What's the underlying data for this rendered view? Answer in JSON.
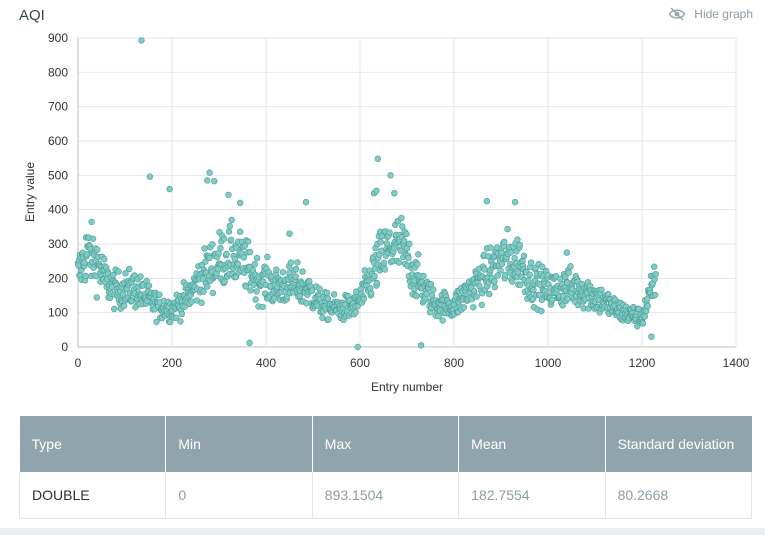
{
  "header": {
    "title": "AQI",
    "hide_graph_label": "Hide graph",
    "hide_graph_icon": "eye-off-icon"
  },
  "chart_data": {
    "type": "scatter",
    "title": "AQI",
    "xlabel": "Entry number",
    "ylabel": "Entry value",
    "xlim": [
      0,
      1400
    ],
    "ylim": [
      0,
      900
    ],
    "xticks": [
      "0",
      "200",
      "400",
      "600",
      "800",
      "1000",
      "1200",
      "1400"
    ],
    "yticks": [
      "0",
      "100",
      "200",
      "300",
      "400",
      "500",
      "600",
      "700",
      "800",
      "900"
    ],
    "grid": true,
    "marker_color": "#80cbc4",
    "marker_edge": "#4c9e9a",
    "n_points": 1230,
    "outliers": [
      {
        "x": 135,
        "y": 893
      },
      {
        "x": 153,
        "y": 496
      },
      {
        "x": 195,
        "y": 460
      },
      {
        "x": 275,
        "y": 485
      },
      {
        "x": 280,
        "y": 508
      },
      {
        "x": 290,
        "y": 483
      },
      {
        "x": 320,
        "y": 443
      },
      {
        "x": 345,
        "y": 420
      },
      {
        "x": 365,
        "y": 12
      },
      {
        "x": 450,
        "y": 330
      },
      {
        "x": 485,
        "y": 422
      },
      {
        "x": 595,
        "y": 0
      },
      {
        "x": 630,
        "y": 448
      },
      {
        "x": 635,
        "y": 455
      },
      {
        "x": 638,
        "y": 548
      },
      {
        "x": 665,
        "y": 500
      },
      {
        "x": 673,
        "y": 448
      },
      {
        "x": 730,
        "y": 5
      },
      {
        "x": 870,
        "y": 425
      },
      {
        "x": 930,
        "y": 422
      },
      {
        "x": 1040,
        "y": 275
      },
      {
        "x": 1220,
        "y": 30
      }
    ]
  },
  "stats": {
    "headers": [
      "Type",
      "Min",
      "Max",
      "Mean",
      "Standard deviation"
    ],
    "values": [
      "DOUBLE",
      "0",
      "893.1504",
      "182.7554",
      "80.2668"
    ]
  }
}
